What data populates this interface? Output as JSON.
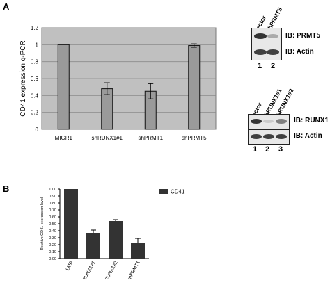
{
  "panel_a": {
    "letter": "A",
    "chart_data": {
      "type": "bar",
      "categories": [
        "MIGR1",
        "shRUNX1#1",
        "shPRMT1",
        "shPRMT5"
      ],
      "values": [
        1.0,
        0.48,
        0.45,
        0.99
      ],
      "errors": [
        0,
        0.07,
        0.09,
        0.02
      ],
      "ylabel": "CD41 expression q-PCR",
      "ylim": [
        0,
        1.2
      ],
      "yticks": [
        "0",
        "0.2",
        "0.4",
        "0.6",
        "0.8",
        "1",
        "1.2"
      ],
      "grid": true,
      "plot_background": "#c0c0c0",
      "bar_color": "#9a9a9a"
    },
    "blot_top": {
      "lanes": [
        "vector",
        "shPRMT5"
      ],
      "rows": [
        {
          "label": "IB: PRMT5",
          "intensities": [
            0.85,
            0.3
          ]
        },
        {
          "label": "IB: Actin",
          "intensities": [
            0.8,
            0.8
          ]
        }
      ],
      "lane_numbers": [
        "1",
        "2"
      ]
    },
    "blot_bottom": {
      "lanes": [
        "vector",
        "shRUNX1#1",
        "shRUNX1#2"
      ],
      "rows": [
        {
          "label": "IB: RUNX1",
          "intensities": [
            0.85,
            0.15,
            0.5
          ]
        },
        {
          "label": "IB: Actin",
          "intensities": [
            0.8,
            0.8,
            0.8
          ]
        }
      ],
      "lane_numbers": [
        "1",
        "2",
        "3"
      ]
    }
  },
  "panel_b": {
    "letter": "B",
    "chart_data": {
      "type": "bar",
      "categories": [
        "LMP",
        "shRUNX1#1",
        "shRUNX1#2",
        "shPRMT1"
      ],
      "series": [
        {
          "name": "CD41",
          "values": [
            1.0,
            0.37,
            0.54,
            0.23
          ],
          "errors": [
            0,
            0.04,
            0.02,
            0.06
          ]
        }
      ],
      "ylabel": "Relative CD41 expression level",
      "ylim": [
        0,
        1.0
      ],
      "yticks": [
        "0.00",
        "0.10",
        "0.20",
        "0.30",
        "0.40",
        "0.50",
        "0.60",
        "0.70",
        "0.80",
        "0.90",
        "1.00"
      ],
      "legend": "top-right",
      "bar_color": "#333333"
    }
  }
}
